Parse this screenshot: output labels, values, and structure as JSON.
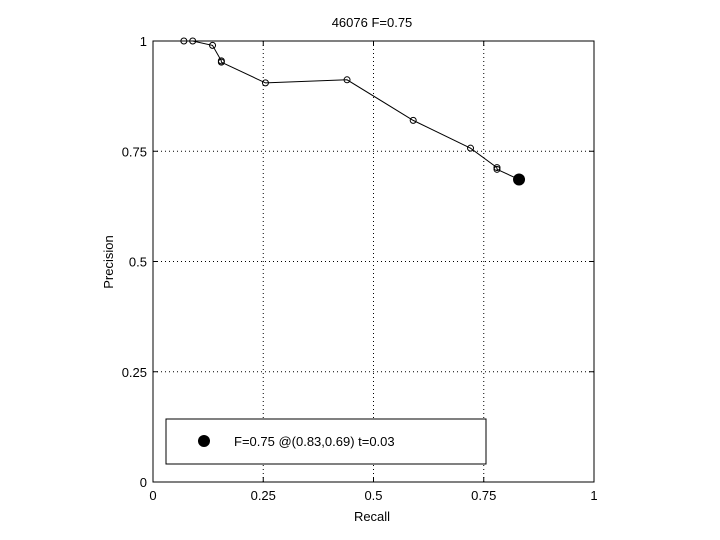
{
  "chart_data": {
    "type": "line",
    "title": "46076 F=0.75",
    "xlabel": "Recall",
    "ylabel": "Precision",
    "xlim": [
      0,
      1
    ],
    "ylim": [
      0,
      1
    ],
    "xticks": [
      0,
      0.25,
      0.5,
      0.75,
      1
    ],
    "yticks": [
      0,
      0.25,
      0.5,
      0.75,
      1
    ],
    "xtick_labels": [
      "0",
      "0.25",
      "0.5",
      "0.75",
      "1"
    ],
    "ytick_labels": [
      "0",
      "0.25",
      "0.5",
      "0.75",
      "1"
    ],
    "grid": true,
    "series": [
      {
        "x": [
          0.07,
          0.09,
          0.135,
          0.155,
          0.155,
          0.255,
          0.44,
          0.59,
          0.72,
          0.78,
          0.78,
          0.83
        ],
        "y": [
          1.0,
          1.0,
          0.99,
          0.955,
          0.952,
          0.905,
          0.912,
          0.82,
          0.757,
          0.713,
          0.709,
          0.686
        ]
      }
    ],
    "best_point": {
      "x": 0.83,
      "y": 0.686
    },
    "legend": {
      "position": "bottom",
      "label": "F=0.75 @(0.83,0.69) t=0.03"
    }
  }
}
